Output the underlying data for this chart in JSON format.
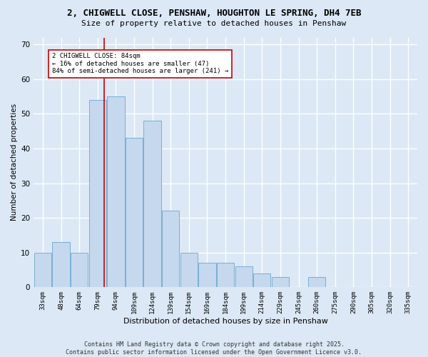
{
  "title1": "2, CHIGWELL CLOSE, PENSHAW, HOUGHTON LE SPRING, DH4 7EB",
  "title2": "Size of property relative to detached houses in Penshaw",
  "xlabel": "Distribution of detached houses by size in Penshaw",
  "ylabel": "Number of detached properties",
  "bar_labels": [
    "33sqm",
    "48sqm",
    "64sqm",
    "79sqm",
    "94sqm",
    "109sqm",
    "124sqm",
    "139sqm",
    "154sqm",
    "169sqm",
    "184sqm",
    "199sqm",
    "214sqm",
    "229sqm",
    "245sqm",
    "260sqm",
    "275sqm",
    "290sqm",
    "305sqm",
    "320sqm",
    "335sqm"
  ],
  "bar_values": [
    10,
    13,
    10,
    54,
    55,
    43,
    48,
    22,
    10,
    7,
    7,
    6,
    4,
    3,
    0,
    3,
    0,
    0,
    0,
    0,
    0
  ],
  "bar_color": "#c5d8ed",
  "bar_edge_color": "#7aafd4",
  "vline_x_index": 3,
  "vline_color": "#cc0000",
  "annotation_text": "2 CHIGWELL CLOSE: 84sqm\n← 16% of detached houses are smaller (47)\n84% of semi-detached houses are larger (241) →",
  "annotation_box_color": "#ffffff",
  "annotation_box_edge": "#cc0000",
  "ylim": [
    0,
    72
  ],
  "yticks": [
    0,
    10,
    20,
    30,
    40,
    50,
    60,
    70
  ],
  "bg_color": "#dce8f5",
  "grid_color": "#ffffff",
  "footer": "Contains HM Land Registry data © Crown copyright and database right 2025.\nContains public sector information licensed under the Open Government Licence v3.0."
}
